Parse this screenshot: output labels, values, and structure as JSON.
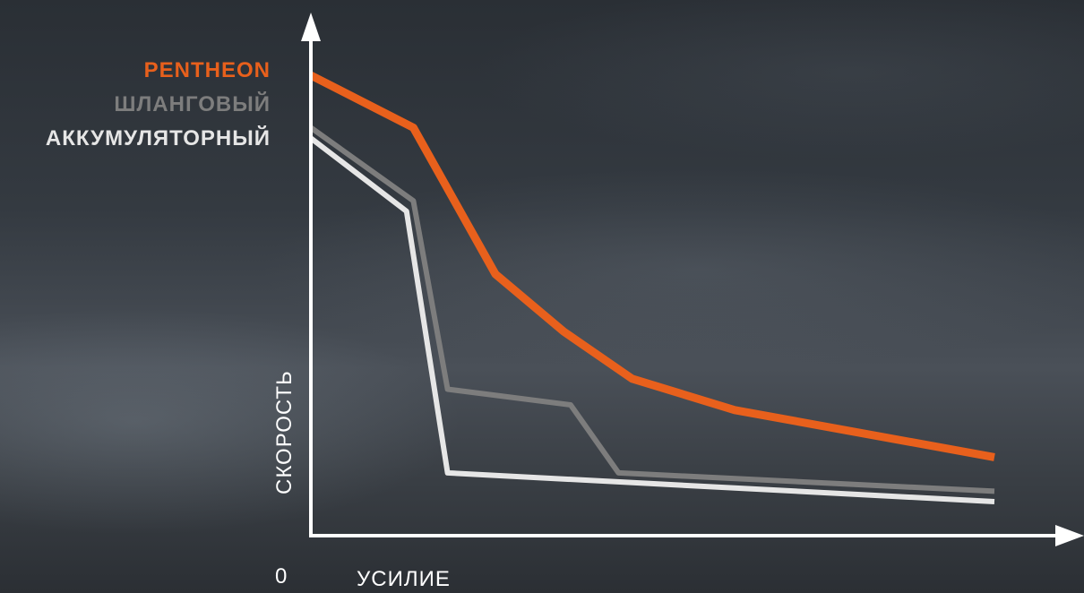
{
  "chart_data": {
    "type": "line",
    "title": "",
    "xlabel": "УСИЛИЕ",
    "ylabel": "СКОРОСТЬ",
    "origin_label": "0",
    "xlim": [
      0,
      100
    ],
    "ylim": [
      0,
      100
    ],
    "grid": false,
    "legend_position": "top-left",
    "series": [
      {
        "name": "PENTHEON",
        "color": "#e8601c",
        "points": [
          [
            0,
            88
          ],
          [
            15,
            78
          ],
          [
            27,
            50
          ],
          [
            37,
            39
          ],
          [
            47,
            30
          ],
          [
            62,
            24
          ],
          [
            100,
            15
          ]
        ]
      },
      {
        "name": "ШЛАНГОВЫЙ",
        "color": "#7d7d7d",
        "points": [
          [
            0,
            78
          ],
          [
            15,
            64
          ],
          [
            20,
            28
          ],
          [
            38,
            25
          ],
          [
            45,
            12
          ],
          [
            100,
            8.5
          ]
        ]
      },
      {
        "name": "АККУМУЛЯТОРНЫЙ",
        "color": "#e6e6e6",
        "points": [
          [
            0,
            76
          ],
          [
            14,
            62
          ],
          [
            20,
            12
          ],
          [
            100,
            6.5
          ]
        ]
      }
    ]
  }
}
